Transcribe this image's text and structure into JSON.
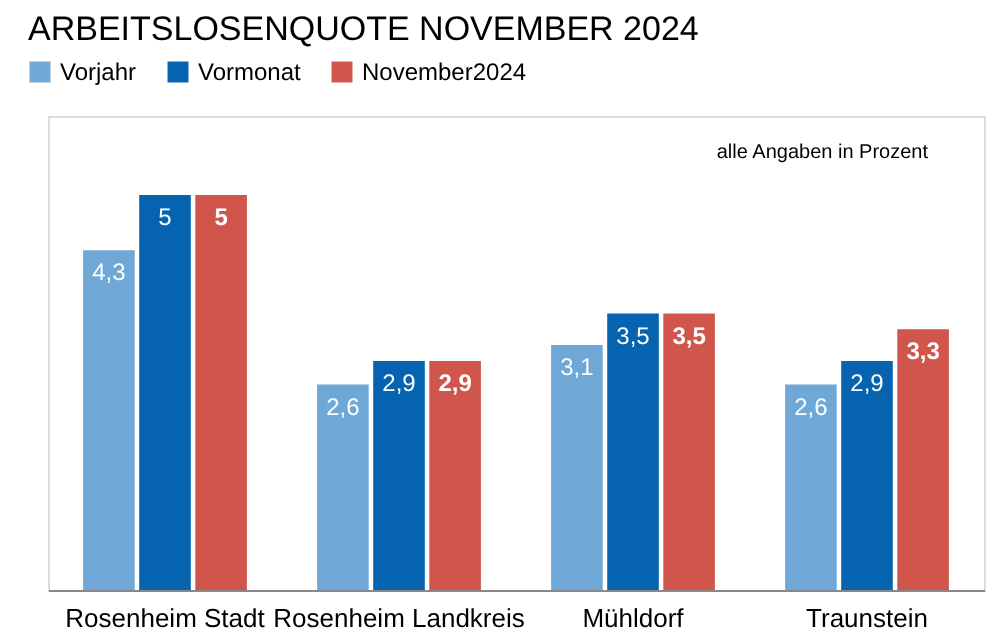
{
  "chart_data": {
    "type": "bar",
    "title": "ARBEITSLOSENQUOTE NOVEMBER 2024",
    "categories": [
      "Rosenheim Stadt",
      "Rosenheim Landkreis",
      "Mühldorf",
      "Traunstein"
    ],
    "series": [
      {
        "name": "Vorjahr",
        "color": "#6fa8d6",
        "values": [
          4.3,
          2.6,
          3.1,
          2.6
        ],
        "value_labels": [
          "4,3",
          "2,6",
          "3,1",
          "2,6"
        ]
      },
      {
        "name": "Vormonat",
        "color": "#0563b0",
        "values": [
          5,
          2.9,
          3.5,
          2.9
        ],
        "value_labels": [
          "5",
          "2,9",
          "3,5",
          "2,9"
        ]
      },
      {
        "name": "November2024",
        "color": "#d0554b",
        "values": [
          5,
          2.9,
          3.5,
          3.3
        ],
        "value_labels": [
          "5",
          "2,9",
          "3,5",
          "3,3"
        ]
      }
    ],
    "ylim": [
      0,
      6
    ],
    "tick_labels": "x",
    "grid": false,
    "legend": "top left",
    "annotations": [
      "alle Angaben in Prozent"
    ]
  }
}
